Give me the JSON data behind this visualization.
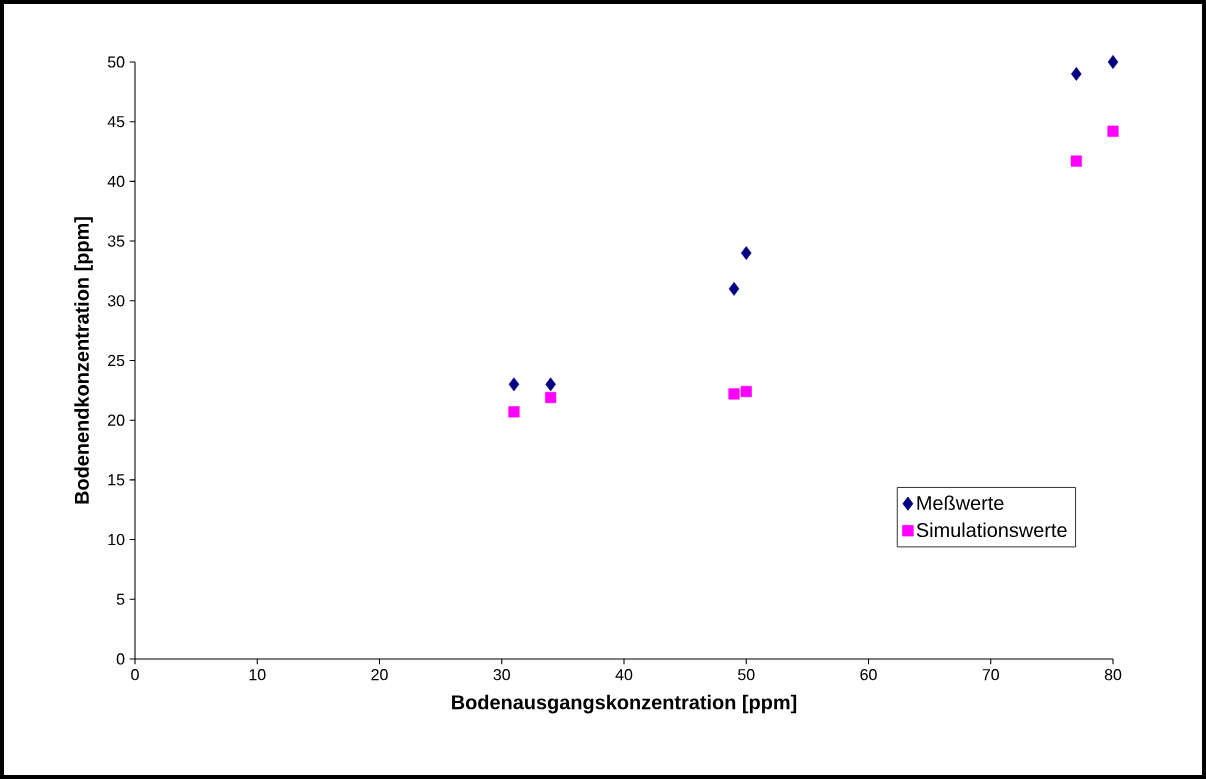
{
  "chart_data": {
    "type": "scatter",
    "xlabel": "Bodenausgangskonzentration [ppm]",
    "ylabel": "Bodenendkonzentration [ppm]",
    "xlim": [
      0,
      80
    ],
    "xticks": [
      0,
      10,
      20,
      30,
      40,
      50,
      60,
      70,
      80
    ],
    "ylim": [
      0,
      50
    ],
    "yticks": [
      0,
      5,
      10,
      15,
      20,
      25,
      30,
      35,
      40,
      45,
      50
    ],
    "grid": false,
    "legend": "bottom right",
    "series": [
      {
        "name": "Meßwerte",
        "color": "#000080",
        "marker": "diamond",
        "x": [
          31,
          34,
          49,
          50,
          77,
          80
        ],
        "values": [
          23,
          23,
          31,
          34,
          49,
          50
        ]
      },
      {
        "name": "Simulationswerte",
        "color": "#ff00ff",
        "marker": "square",
        "x": [
          31,
          34,
          49,
          50,
          77,
          80
        ],
        "values": [
          20.7,
          21.9,
          22.2,
          22.4,
          41.7,
          44.2
        ]
      }
    ]
  }
}
